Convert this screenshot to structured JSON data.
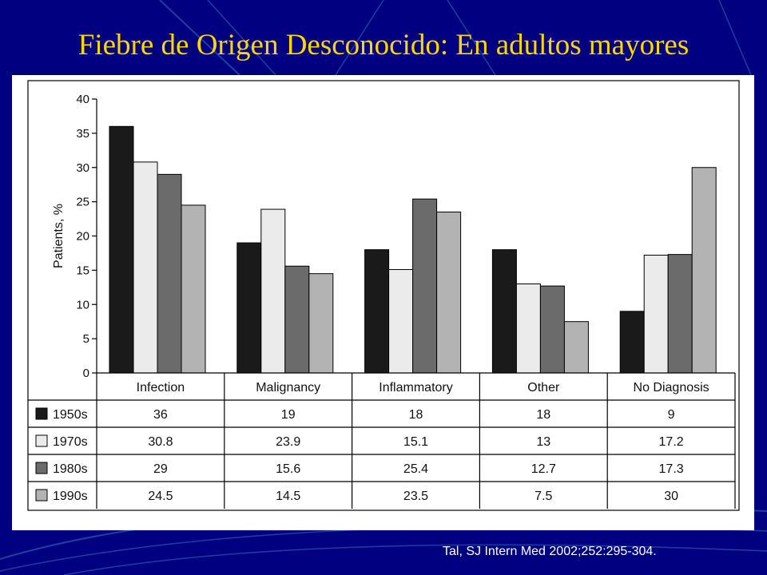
{
  "slide": {
    "title": "Fiebre de Origen Desconocido: En adultos mayores",
    "citation": "Tal, SJ Intern Med 2002;252:295-304."
  },
  "colors": {
    "background": "#000080",
    "title": "#FFD700",
    "accent_lines": "#1E3FA0",
    "citation": "#ffffff"
  },
  "chart_data": {
    "type": "bar",
    "title": "",
    "xlabel": "",
    "ylabel": "Patients, %",
    "ylim": [
      0,
      40
    ],
    "yticks": [
      0,
      5,
      10,
      15,
      20,
      25,
      30,
      35,
      40
    ],
    "categories": [
      "Infection",
      "Malignancy",
      "Inflammatory",
      "Other",
      "No Diagnosis"
    ],
    "series": [
      {
        "name": "1950s",
        "color": "#1a1a1a",
        "values": [
          36,
          19,
          18,
          18,
          9
        ]
      },
      {
        "name": "1970s",
        "color": "#ebebeb",
        "values": [
          30.8,
          23.9,
          15.1,
          13,
          17.2
        ]
      },
      {
        "name": "1980s",
        "color": "#6b6b6b",
        "values": [
          29,
          15.6,
          25.4,
          12.7,
          17.3
        ]
      },
      {
        "name": "1990s",
        "color": "#b3b3b3",
        "values": [
          24.5,
          14.5,
          23.5,
          7.5,
          30
        ]
      }
    ],
    "table": {
      "rows": [
        [
          "36",
          "19",
          "18",
          "18",
          "9"
        ],
        [
          "30.8",
          "23.9",
          "15.1",
          "13",
          "17.2"
        ],
        [
          "29",
          "15.6",
          "25.4",
          "12.7",
          "17.3"
        ],
        [
          "24.5",
          "14.5",
          "23.5",
          "7.5",
          "30"
        ]
      ]
    },
    "grid": false,
    "legend": "data table below chart"
  }
}
